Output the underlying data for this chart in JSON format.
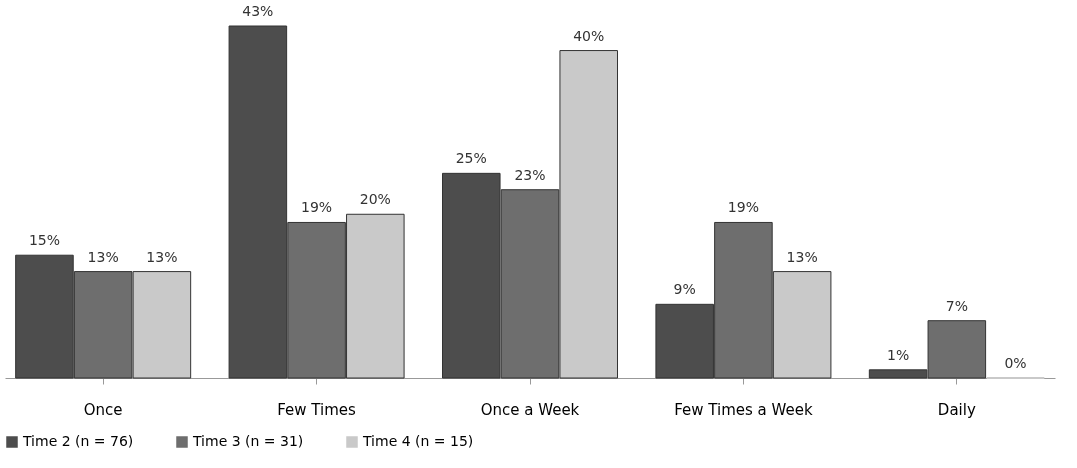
{
  "chart_data": {
    "type": "bar",
    "categories": [
      "Once",
      "Few Times",
      "Once a Week",
      "Few Times a Week",
      "Daily"
    ],
    "series": [
      {
        "name": "Time 2 (n = 76)",
        "color": "#4d4d4d",
        "values": [
          15,
          43,
          25,
          9,
          1
        ],
        "value_labels": [
          "15%",
          "43%",
          "25%",
          "9%",
          "1%"
        ]
      },
      {
        "name": "Time 3 (n = 31)",
        "color": "#6e6e6e",
        "values": [
          13,
          19,
          23,
          19,
          7
        ],
        "value_labels": [
          "13%",
          "19%",
          "23%",
          "19%",
          "7%"
        ]
      },
      {
        "name": "Time 4 (n = 15)",
        "color": "#c9c9c9",
        "values": [
          13,
          20,
          40,
          13,
          0
        ],
        "value_labels": [
          "13%",
          "20%",
          "40%",
          "13%",
          "0%"
        ]
      }
    ],
    "legend": "bottom",
    "tick_labels": "x",
    "grid": false
  }
}
